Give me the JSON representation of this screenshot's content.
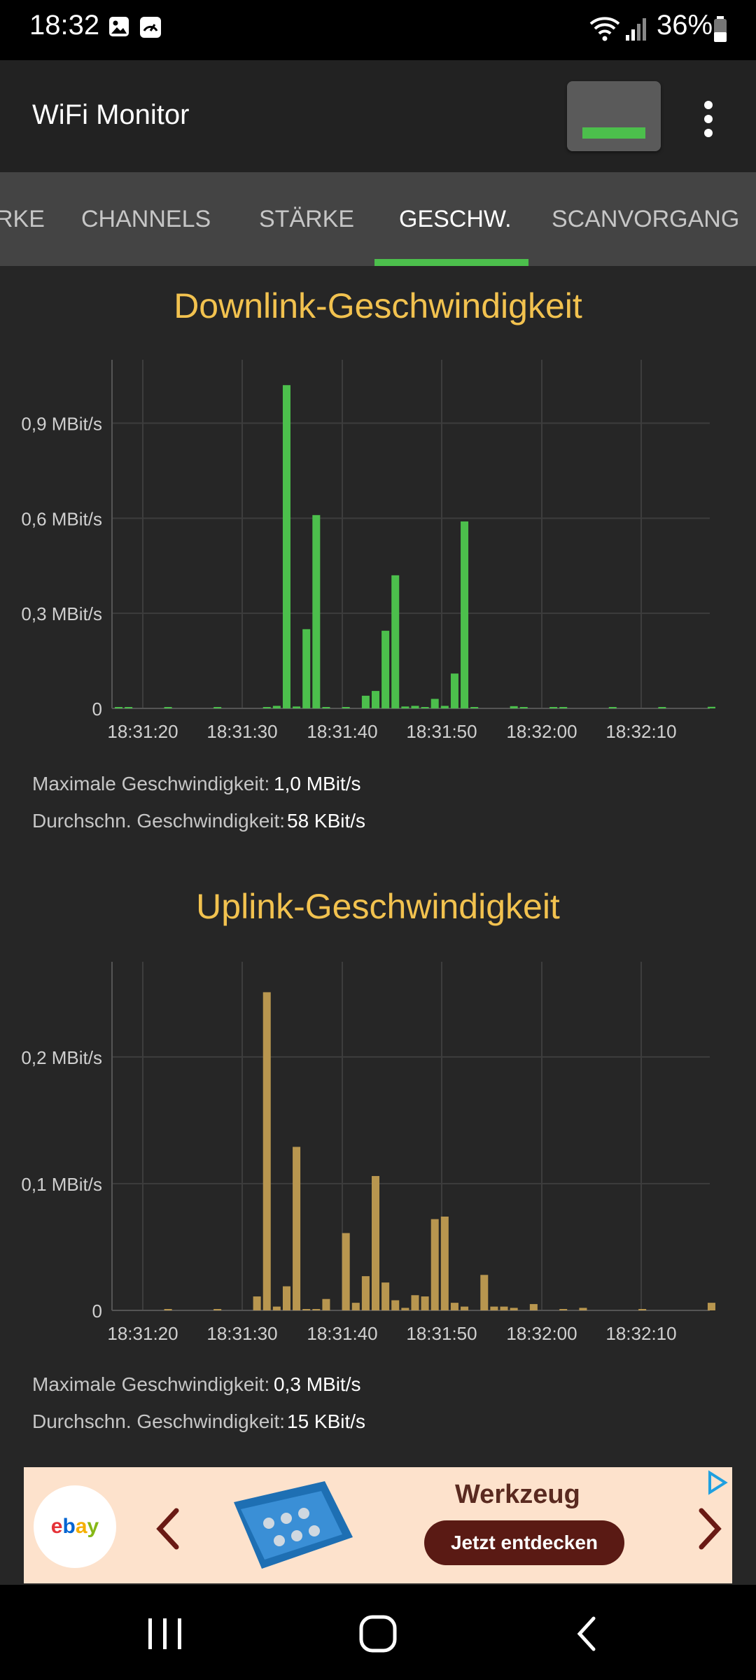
{
  "status_bar": {
    "time": "18:32",
    "battery": "36%",
    "icons": [
      "gallery-icon",
      "speedometer-icon",
      "wifi-icon",
      "signal-icon",
      "battery-icon"
    ]
  },
  "app_bar": {
    "title": "WiFi Monitor",
    "action_button_icon": "pause-icon",
    "overflow_icon": "more-vert-icon"
  },
  "tabs": {
    "items": [
      {
        "label": "RKE",
        "active": false
      },
      {
        "label": "CHANNELS",
        "active": false
      },
      {
        "label": "STÄRKE",
        "active": false
      },
      {
        "label": "GESCHW.",
        "active": true
      },
      {
        "label": "SCANVORGANG",
        "active": false
      }
    ]
  },
  "colors": {
    "downlink": "#4cbf4c",
    "uplink": "#b8964f",
    "title": "#f2c24f",
    "accent": "#4cbf4c"
  },
  "chart_data": [
    {
      "type": "bar",
      "title": "Downlink-Geschwindigkeit",
      "x_tick_labels": [
        "18:31:20",
        "18:31:30",
        "18:31:40",
        "18:31:50",
        "18:32:00",
        "18:32:10"
      ],
      "y_tick_labels": [
        "0",
        "0,3 MBit/s",
        "0,6 MBit/s",
        "0,9 MBit/s"
      ],
      "y_ticks": [
        0,
        0.3,
        0.6,
        0.9
      ],
      "ylim": [
        0,
        1.1
      ],
      "unit": "MBit/s",
      "grid": true,
      "series": [
        {
          "values": [
            0.004,
            0.002,
            0,
            0,
            0,
            0.004,
            0,
            0,
            0,
            0,
            0.003,
            0,
            0,
            0,
            0,
            0.003,
            0.008,
            1.02,
            0.006,
            0.25,
            0.61,
            0.003,
            0,
            0.003,
            0,
            0.04,
            0.055,
            0.245,
            0.42,
            0.006,
            0.008,
            0.004,
            0.03,
            0.008,
            0.11,
            0.59,
            0.003,
            0,
            0,
            0,
            0.007,
            0.002,
            0,
            0,
            0.003,
            0.004,
            0,
            0,
            0,
            0,
            0.004,
            0,
            0,
            0,
            0,
            0.004,
            0,
            0,
            0,
            0,
            0.005
          ]
        }
      ],
      "stats": {
        "max_label": "Maximale Geschwindigkeit:",
        "max_value": "1,0 MBit/s",
        "avg_label": "Durchschn. Geschwindigkeit:",
        "avg_value": "58 KBit/s"
      }
    },
    {
      "type": "bar",
      "title": "Uplink-Geschwindigkeit",
      "x_tick_labels": [
        "18:31:20",
        "18:31:30",
        "18:31:40",
        "18:31:50",
        "18:32:00",
        "18:32:10"
      ],
      "y_tick_labels": [
        "0",
        "0,1 MBit/s",
        "0,2 MBit/s"
      ],
      "y_ticks": [
        0,
        0.1,
        0.2
      ],
      "ylim": [
        0,
        0.275
      ],
      "unit": "MBit/s",
      "grid": true,
      "series": [
        {
          "values": [
            0,
            0,
            0,
            0,
            0,
            0.001,
            0,
            0,
            0,
            0,
            0.001,
            0,
            0,
            0,
            0.011,
            0.251,
            0.003,
            0.019,
            0.129,
            0.001,
            0.001,
            0.009,
            0,
            0.061,
            0.006,
            0.027,
            0.106,
            0.022,
            0.008,
            0.002,
            0.012,
            0.011,
            0.072,
            0.074,
            0.006,
            0.003,
            0,
            0.028,
            0.003,
            0.003,
            0.002,
            0,
            0.005,
            0,
            0,
            0.001,
            0,
            0.002,
            0,
            0,
            0,
            0,
            0,
            0.001,
            0,
            0,
            0,
            0,
            0,
            0,
            0.006
          ]
        }
      ],
      "stats": {
        "max_label": "Maximale Geschwindigkeit:",
        "max_value": "0,3 MBit/s",
        "avg_label": "Durchschn. Geschwindigkeit:",
        "avg_value": "15 KBit/s"
      }
    }
  ],
  "ad": {
    "brand": "ebay",
    "headline": "Werkzeug",
    "cta": "Jetzt entdecken",
    "image_icon": "toolbox-icon",
    "prev_icon": "chevron-left-icon",
    "next_icon": "chevron-right-icon",
    "badge_icon": "adchoices-icon"
  },
  "nav_bar": {
    "icons": [
      "recents-icon",
      "home-icon",
      "back-icon"
    ]
  }
}
